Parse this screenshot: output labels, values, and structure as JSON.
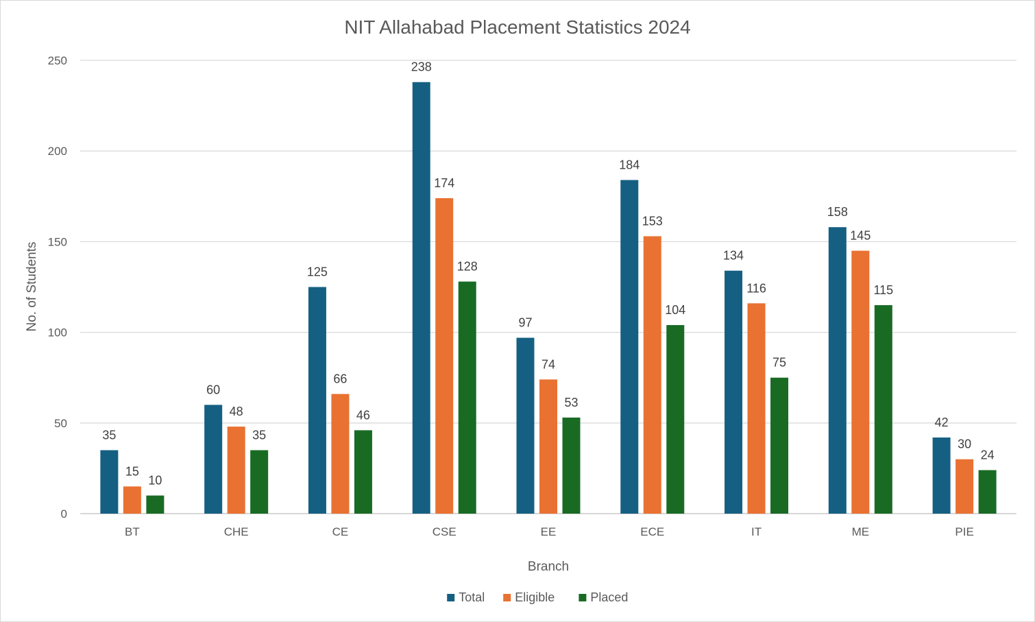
{
  "chart_data": {
    "type": "bar",
    "title": "NIT Allahabad Placement Statistics 2024",
    "xlabel": "Branch",
    "ylabel": "No. of Students",
    "ylim": [
      0,
      250
    ],
    "yticks": [
      0,
      50,
      100,
      150,
      200,
      250
    ],
    "grid": true,
    "legend": "bottom",
    "categories": [
      "BT",
      "CHE",
      "CE",
      "CSE",
      "EE",
      "ECE",
      "IT",
      "ME",
      "PIE"
    ],
    "series": [
      {
        "name": "Total",
        "color": "#156082",
        "values": [
          35,
          60,
          125,
          238,
          97,
          184,
          134,
          158,
          42
        ]
      },
      {
        "name": "Eligible",
        "color": "#E97132",
        "values": [
          15,
          48,
          66,
          174,
          74,
          153,
          116,
          145,
          30
        ]
      },
      {
        "name": "Placed",
        "color": "#196B24",
        "values": [
          10,
          35,
          46,
          128,
          53,
          104,
          75,
          115,
          24
        ]
      }
    ]
  }
}
